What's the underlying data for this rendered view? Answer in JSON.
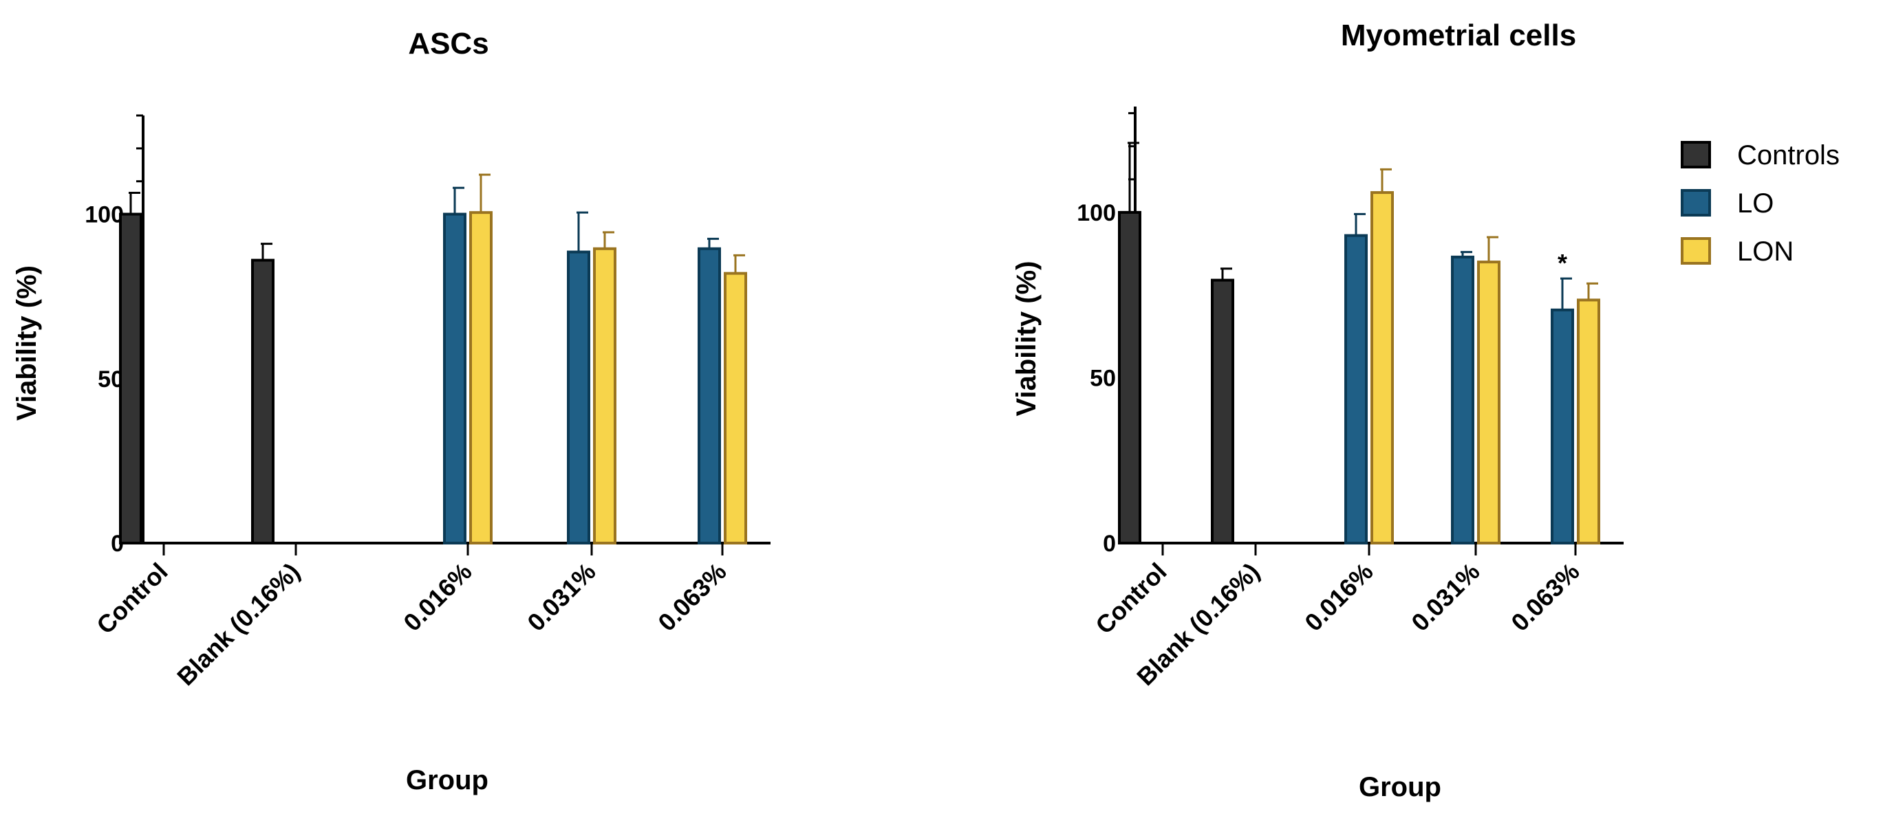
{
  "legend": [
    {
      "name": "Controls",
      "fill": "#333333",
      "stroke": "#000000"
    },
    {
      "name": "LO",
      "fill": "#1f5f86",
      "stroke": "#0b3a55"
    },
    {
      "name": "LON",
      "fill": "#f7d44a",
      "stroke": "#9a7420"
    }
  ],
  "chart_data": [
    {
      "type": "bar",
      "title": "ASCs",
      "xlabel": "Group",
      "ylabel": "Viability  (%)",
      "ylim": [
        0,
        130
      ],
      "yticks": [
        0,
        50,
        100
      ],
      "categories": [
        "Control",
        "Blank (0.16%)",
        "0.016%",
        "0.031%",
        "0.063%"
      ],
      "series": [
        {
          "name": "Controls",
          "values": [
            100,
            86,
            null,
            null,
            null
          ],
          "errors": [
            6.5,
            5,
            null,
            null,
            null
          ]
        },
        {
          "name": "LO",
          "values": [
            null,
            null,
            100,
            88.5,
            89.5
          ],
          "errors": [
            null,
            null,
            8,
            12,
            3
          ]
        },
        {
          "name": "LON",
          "values": [
            null,
            null,
            100.5,
            89.5,
            82
          ],
          "errors": [
            null,
            null,
            11.5,
            5,
            5.5
          ]
        }
      ],
      "annotations": []
    },
    {
      "type": "bar",
      "title": "Myometrial cells",
      "xlabel": "Group",
      "ylabel": "Viability  (%)",
      "ylim": [
        0,
        132
      ],
      "yticks": [
        0,
        50,
        100
      ],
      "categories": [
        "Control",
        "Blank (0.16%)",
        "0.016%",
        "0.031%",
        "0.063%"
      ],
      "series": [
        {
          "name": "Controls",
          "values": [
            100,
            79.5,
            null,
            null,
            null
          ],
          "errors": [
            21,
            3.5,
            null,
            null,
            null
          ]
        },
        {
          "name": "LO",
          "values": [
            null,
            null,
            93,
            86.5,
            70.5
          ],
          "errors": [
            null,
            null,
            6.5,
            1.5,
            9.5
          ]
        },
        {
          "name": "LON",
          "values": [
            null,
            null,
            106,
            85,
            73.5
          ],
          "errors": [
            null,
            null,
            7,
            7.5,
            5
          ]
        }
      ],
      "annotations": [
        {
          "category": "0.063%",
          "series": "LO",
          "text": "*"
        }
      ]
    }
  ]
}
